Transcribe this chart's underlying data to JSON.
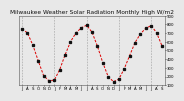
{
  "title": "Milwaukee Weather Solar Radiation Monthly High W/m2",
  "values": [
    750,
    700,
    560,
    380,
    210,
    150,
    160,
    280,
    450,
    600,
    700,
    760,
    790,
    710,
    550,
    360,
    200,
    140,
    170,
    290,
    440,
    590,
    690,
    755,
    785,
    705,
    555
  ],
  "x_labels": [
    "J",
    "A",
    "S",
    "O",
    "N",
    "D",
    "J",
    "F",
    "M",
    "A",
    "M",
    "J",
    "J",
    "A",
    "S",
    "O",
    "N",
    "D",
    "J",
    "F",
    "M",
    "A",
    "M",
    "J",
    "J",
    "A",
    "S"
  ],
  "ylim": [
    100,
    900
  ],
  "ytick_vals": [
    900,
    800,
    700,
    600,
    500,
    400,
    300,
    200,
    100
  ],
  "ytick_labels": [
    "900",
    "800",
    "700",
    "600",
    "500",
    "400",
    "300",
    "200",
    "100"
  ],
  "vlines": [
    0,
    6,
    12,
    18,
    24
  ],
  "line_color": "#dd0000",
  "marker_color": "#111111",
  "bg_color": "#e8e8e8",
  "grid_color": "#999999",
  "title_fontsize": 4.2,
  "tick_fontsize": 2.8,
  "line_width": 0.7,
  "marker_size": 1.4
}
